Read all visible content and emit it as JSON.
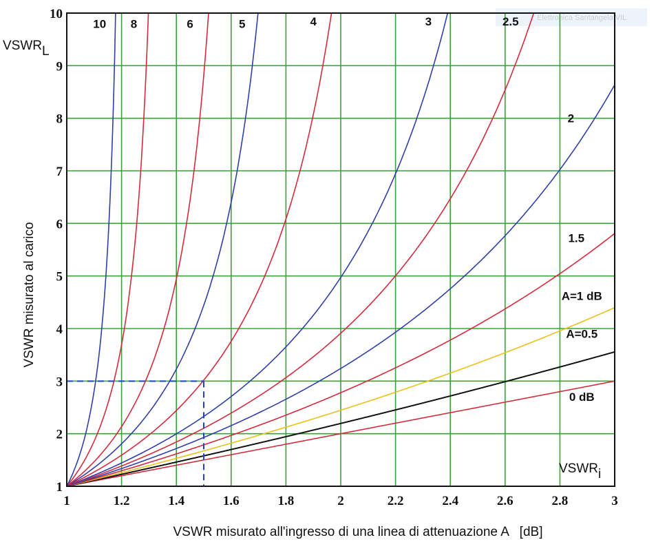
{
  "chart_data": {
    "type": "line",
    "xlabel": "VSWR misurato all'ingresso di una linea di attenuazione A   [dB]",
    "ylabel": "VSWR misurato al carico",
    "x_corner_label": {
      "main": "VSWR",
      "sub": "i"
    },
    "y_corner_label": {
      "main": "VSWR",
      "sub": "L"
    },
    "xlim": [
      1,
      3
    ],
    "ylim": [
      1,
      10
    ],
    "x_ticks": [
      "1",
      "1.2",
      "1.4",
      "1.6",
      "1.8",
      "2",
      "2.2",
      "2.4",
      "2.6",
      "2.8",
      "3"
    ],
    "y_ticks": [
      "1",
      "2",
      "3",
      "4",
      "5",
      "6",
      "7",
      "8",
      "9",
      "10"
    ],
    "grid": true,
    "colors": {
      "grid": "#3aa23a",
      "frame": "#111111",
      "red": "#d42a3c",
      "blue": "#2f3fa8",
      "yellow": "#e8c21a",
      "black": "#111111",
      "example": "#1f3fd0"
    },
    "series": [
      {
        "name": "0 dB",
        "attenuation_db": 0,
        "color": "red",
        "label_x": 2.88,
        "label_y": 2.7
      },
      {
        "name": "A=0.5",
        "attenuation_db": 0.5,
        "color": "black",
        "label_x": 2.88,
        "label_y": 3.9
      },
      {
        "name": "A=1 dB",
        "attenuation_db": 1,
        "color": "yellow",
        "label_x": 2.88,
        "label_y": 4.62
      },
      {
        "name": "1.5",
        "attenuation_db": 1.5,
        "color": "red",
        "label_x": 2.86,
        "label_y": 5.72
      },
      {
        "name": "2",
        "attenuation_db": 2,
        "color": "blue",
        "label_x": 2.84,
        "label_y": 8.0
      },
      {
        "name": "2.5",
        "attenuation_db": 2.5,
        "color": "red",
        "label_x": 2.62,
        "label_y": 9.84
      },
      {
        "name": "3",
        "attenuation_db": 3,
        "color": "blue",
        "label_x": 2.32,
        "label_y": 9.84
      },
      {
        "name": "4",
        "attenuation_db": 4,
        "color": "red",
        "label_x": 1.9,
        "label_y": 9.84
      },
      {
        "name": "5",
        "attenuation_db": 5,
        "color": "blue",
        "label_x": 1.64,
        "label_y": 9.8
      },
      {
        "name": "6",
        "attenuation_db": 6,
        "color": "red",
        "label_x": 1.45,
        "label_y": 9.8
      },
      {
        "name": "8",
        "attenuation_db": 8,
        "color": "red",
        "label_x": 1.245,
        "label_y": 9.8
      },
      {
        "name": "10",
        "attenuation_db": 10,
        "color": "blue",
        "label_x": 1.12,
        "label_y": 9.8
      }
    ],
    "example_point": {
      "x": 1.5,
      "y": 3
    }
  },
  "watermark_text": "Elettronica Santangela VIL"
}
